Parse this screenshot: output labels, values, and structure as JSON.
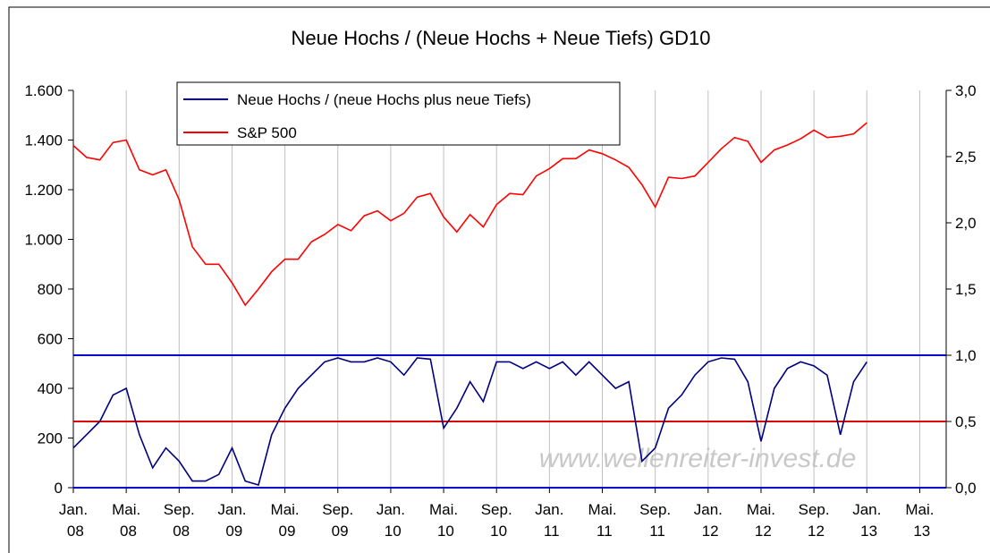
{
  "chart_data": {
    "type": "line",
    "title": "Neue Hochs / (Neue Hochs + Neue Tiefs) GD10",
    "x": [
      "2008-01",
      "2008-02",
      "2008-03",
      "2008-04",
      "2008-05",
      "2008-06",
      "2008-07",
      "2008-08",
      "2008-09",
      "2008-10",
      "2008-11",
      "2008-12",
      "2009-01",
      "2009-02",
      "2009-03",
      "2009-04",
      "2009-05",
      "2009-06",
      "2009-07",
      "2009-08",
      "2009-09",
      "2009-10",
      "2009-11",
      "2009-12",
      "2010-01",
      "2010-02",
      "2010-03",
      "2010-04",
      "2010-05",
      "2010-06",
      "2010-07",
      "2010-08",
      "2010-09",
      "2010-10",
      "2010-11",
      "2010-12",
      "2011-01",
      "2011-02",
      "2011-03",
      "2011-04",
      "2011-05",
      "2011-06",
      "2011-07",
      "2011-08",
      "2011-09",
      "2011-10",
      "2011-11",
      "2011-12",
      "2012-01",
      "2012-02",
      "2012-03",
      "2012-04",
      "2012-05",
      "2012-06",
      "2012-07",
      "2012-08",
      "2012-09",
      "2012-10",
      "2012-11",
      "2012-12",
      "2013-01"
    ],
    "series": [
      {
        "name": "Neue Hochs /  (neue Hochs plus neue Tiefs)",
        "color": "#000080",
        "axis": "y2",
        "values": [
          0.3,
          0.4,
          0.5,
          0.7,
          0.75,
          0.4,
          0.15,
          0.3,
          0.2,
          0.05,
          0.05,
          0.1,
          0.3,
          0.05,
          0.02,
          0.4,
          0.6,
          0.75,
          0.85,
          0.95,
          0.98,
          0.95,
          0.95,
          0.98,
          0.95,
          0.85,
          0.98,
          0.97,
          0.45,
          0.6,
          0.8,
          0.65,
          0.95,
          0.95,
          0.9,
          0.95,
          0.9,
          0.95,
          0.85,
          0.95,
          0.85,
          0.75,
          0.8,
          0.2,
          0.3,
          0.6,
          0.7,
          0.85,
          0.95,
          0.98,
          0.97,
          0.8,
          0.35,
          0.75,
          0.9,
          0.95,
          0.92,
          0.85,
          0.4,
          0.8,
          0.95
        ]
      },
      {
        "name": "S&P 500",
        "color": "#ff0000",
        "values": [
          1378,
          1330,
          1320,
          1390,
          1400,
          1280,
          1260,
          1280,
          1160,
          970,
          900,
          900,
          825,
          735,
          800,
          870,
          920,
          920,
          990,
          1020,
          1060,
          1035,
          1095,
          1115,
          1075,
          1105,
          1170,
          1185,
          1090,
          1030,
          1100,
          1050,
          1140,
          1185,
          1180,
          1255,
          1285,
          1325,
          1325,
          1360,
          1345,
          1320,
          1290,
          1220,
          1130,
          1250,
          1245,
          1255,
          1310,
          1365,
          1410,
          1395,
          1310,
          1360,
          1380,
          1405,
          1440,
          1410,
          1415,
          1425,
          1470
        ]
      }
    ],
    "reference_lines": [
      {
        "value": 1.0,
        "color": "#0000cc",
        "axis": "y2"
      },
      {
        "value": 0.5,
        "color": "#dd0000",
        "axis": "y2"
      }
    ],
    "xlim": [
      "2008-01",
      "2013-07"
    ],
    "xticks": [
      {
        "value": "2008-01",
        "label": "Jan. 08"
      },
      {
        "value": "2008-05",
        "label": "Mai. 08"
      },
      {
        "value": "2008-09",
        "label": "Sep. 08"
      },
      {
        "value": "2009-01",
        "label": "Jan. 09"
      },
      {
        "value": "2009-05",
        "label": "Mai. 09"
      },
      {
        "value": "2009-09",
        "label": "Sep. 09"
      },
      {
        "value": "2010-01",
        "label": "Jan. 10"
      },
      {
        "value": "2010-05",
        "label": "Mai. 10"
      },
      {
        "value": "2010-09",
        "label": "Sep. 10"
      },
      {
        "value": "2011-01",
        "label": "Jan. 11"
      },
      {
        "value": "2011-05",
        "label": "Mai. 11"
      },
      {
        "value": "2011-09",
        "label": "Sep. 11"
      },
      {
        "value": "2012-01",
        "label": "Jan. 12"
      },
      {
        "value": "2012-05",
        "label": "Mai. 12"
      },
      {
        "value": "2012-09",
        "label": "Sep. 12"
      },
      {
        "value": "2013-01",
        "label": "Jan. 13"
      },
      {
        "value": "2013-05",
        "label": "Mai. 13"
      }
    ],
    "ylim": [
      0,
      1600
    ],
    "yticks": [
      0,
      200,
      400,
      600,
      800,
      {
        "value": 1000,
        "label": "1.000"
      },
      {
        "value": 1200,
        "label": "1.200"
      },
      {
        "value": 1400,
        "label": "1.400"
      },
      {
        "value": 1600,
        "label": "1.600"
      }
    ],
    "y2lim": [
      0,
      3
    ],
    "y2ticks": [
      {
        "value": 0,
        "label": "0,0"
      },
      {
        "value": 0.5,
        "label": "0,5"
      },
      {
        "value": 1,
        "label": "1,0"
      },
      {
        "value": 1.5,
        "label": "1,5"
      },
      {
        "value": 2,
        "label": "2,0"
      },
      {
        "value": 2.5,
        "label": "2,5"
      },
      {
        "value": 3,
        "label": "3,0"
      }
    ],
    "grid": "x",
    "annotation": "www.wellenreiter-invest.de"
  }
}
